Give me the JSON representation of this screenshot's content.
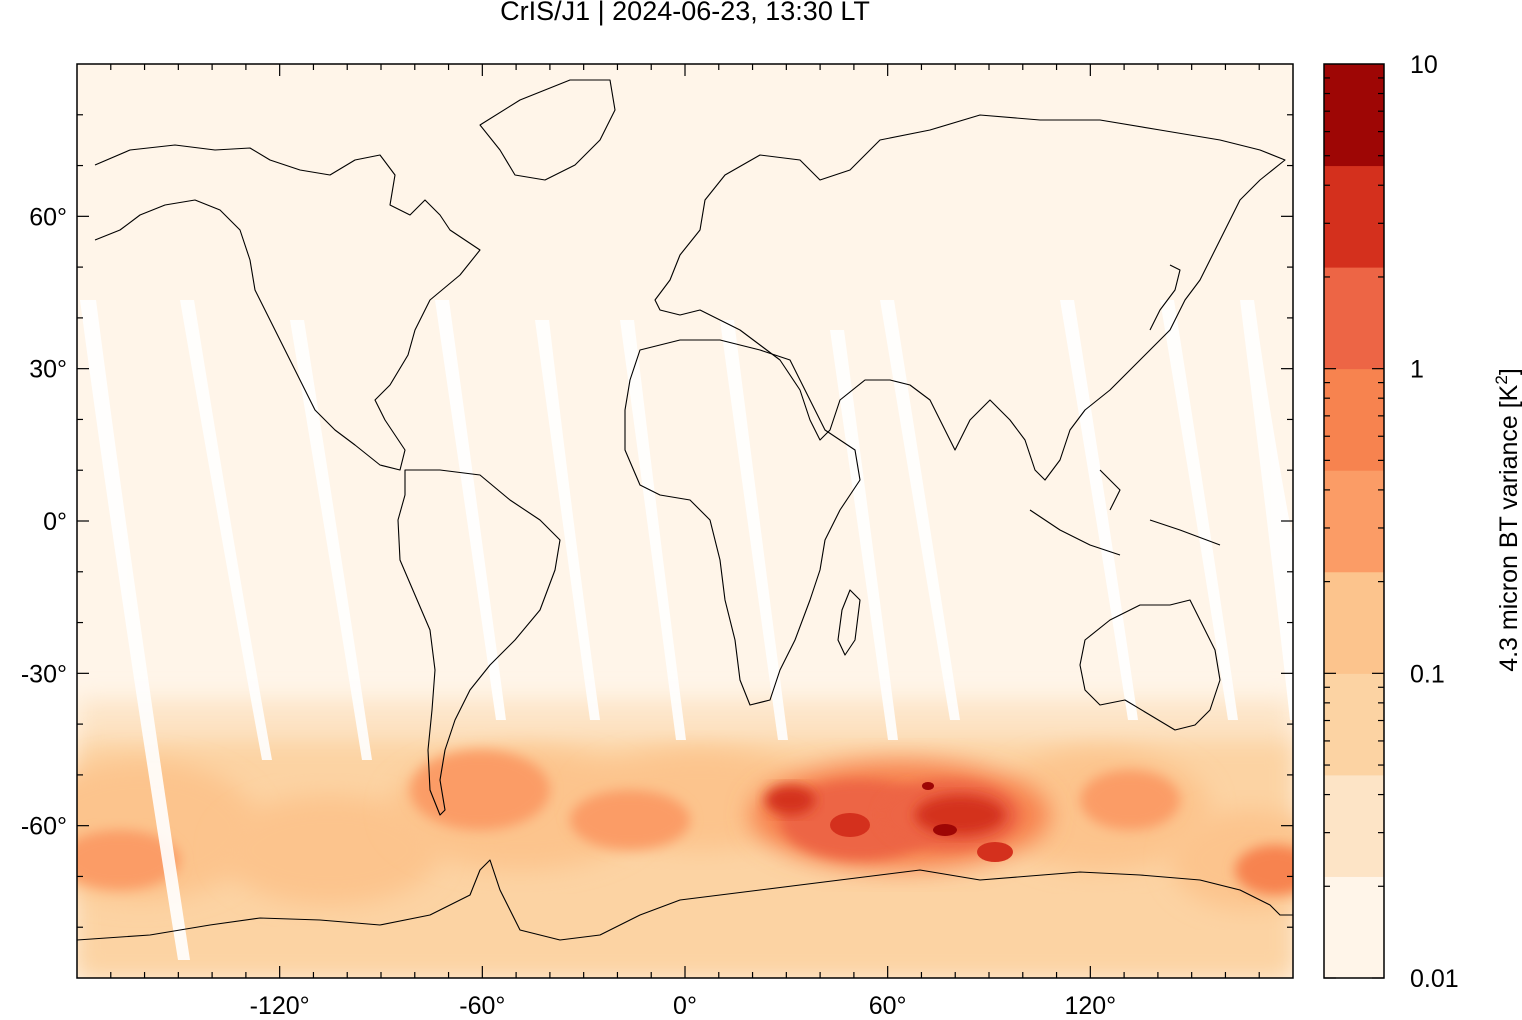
{
  "title": "CrIS/J1 | 2024-06-23, 13:30 LT",
  "map": {
    "projection": "equirectangular",
    "lon_range": [
      -180,
      180
    ],
    "lat_range": [
      -90,
      90
    ],
    "lat_ticks": [
      "60°",
      "30°",
      "0°",
      "-30°",
      "-60°"
    ],
    "lon_ticks": [
      "-120°",
      "-60°",
      "0°",
      "60°",
      "120°"
    ],
    "background_color": "#fff5e9",
    "coastline_color": "#000000"
  },
  "colorbar": {
    "label": "4.3 micron BT variance [K",
    "label_superscript": "2",
    "label_close": "]",
    "scale": "log",
    "range": [
      0.01,
      10
    ],
    "tick_labels": [
      "10",
      "1",
      "0.1",
      "0.01"
    ],
    "colors": [
      "#fff5e9",
      "#fde4c6",
      "#fcd3a3",
      "#fcc48d",
      "#fb9c66",
      "#f7834f",
      "#ed6545",
      "#d4301d",
      "#9e0605"
    ]
  }
}
